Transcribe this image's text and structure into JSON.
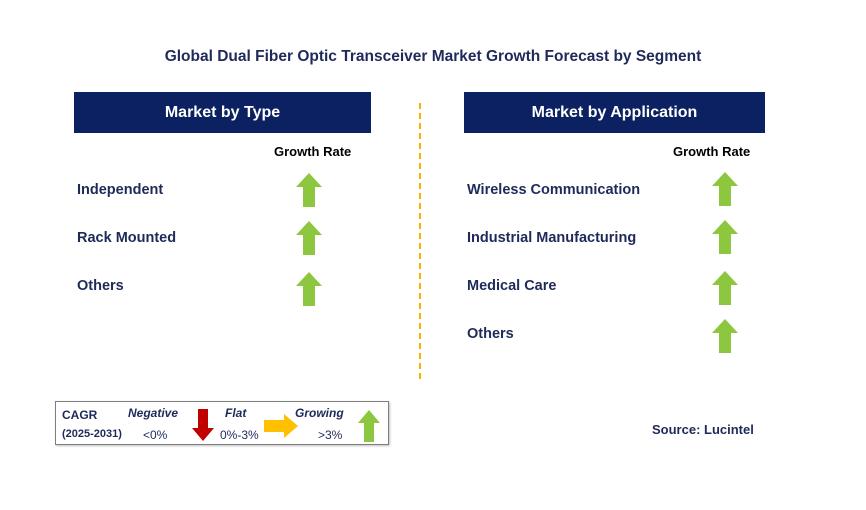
{
  "title": "Global Dual Fiber Optic Transceiver Market Growth Forecast by Segment",
  "left_panel": {
    "header": "Market by Type",
    "growth_label": "Growth Rate",
    "rows": [
      {
        "label": "Independent",
        "trend": "growing"
      },
      {
        "label": "Rack Mounted",
        "trend": "growing"
      },
      {
        "label": "Others",
        "trend": "growing"
      }
    ]
  },
  "right_panel": {
    "header": "Market by Application",
    "growth_label": "Growth Rate",
    "rows": [
      {
        "label": "Wireless Communication",
        "trend": "growing"
      },
      {
        "label": "Industrial Manufacturing",
        "trend": "growing"
      },
      {
        "label": "Medical Care",
        "trend": "growing"
      },
      {
        "label": "Others",
        "trend": "growing"
      }
    ]
  },
  "legend": {
    "cagr_label": "CAGR",
    "period": "(2025-2031)",
    "negative_label": "Negative",
    "negative_range": "<0%",
    "flat_label": "Flat",
    "flat_range": "0%-3%",
    "growing_label": "Growing",
    "growing_range": ">3%"
  },
  "source": "Source: Lucintel",
  "colors": {
    "header_bg": "#0b2161",
    "text_navy": "#1f2a5a",
    "growing_arrow": "#8dc63f",
    "negative_arrow": "#c00000",
    "flat_arrow": "#ffc000",
    "divider": "#f5b400"
  }
}
